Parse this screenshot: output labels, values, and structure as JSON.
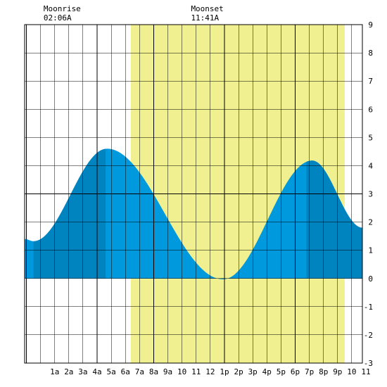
{
  "chart_data": {
    "type": "area",
    "x_unit": "hour of day",
    "xlim": [
      -1.125,
      22.75
    ],
    "ylim": [
      -3,
      9
    ],
    "x_tick_labels": [
      {
        "hour": 1,
        "label": "1a"
      },
      {
        "hour": 2,
        "label": "2a"
      },
      {
        "hour": 3,
        "label": "3a"
      },
      {
        "hour": 4,
        "label": "4a"
      },
      {
        "hour": 5,
        "label": "5a"
      },
      {
        "hour": 6,
        "label": "6a"
      },
      {
        "hour": 7,
        "label": "7a"
      },
      {
        "hour": 8,
        "label": "8a"
      },
      {
        "hour": 9,
        "label": "9a"
      },
      {
        "hour": 10,
        "label": "10"
      },
      {
        "hour": 11,
        "label": "11"
      },
      {
        "hour": 12,
        "label": "12"
      },
      {
        "hour": 13,
        "label": "1p"
      },
      {
        "hour": 14,
        "label": "2p"
      },
      {
        "hour": 15,
        "label": "3p"
      },
      {
        "hour": 16,
        "label": "4p"
      },
      {
        "hour": 17,
        "label": "5p"
      },
      {
        "hour": 18,
        "label": "6p"
      },
      {
        "hour": 19,
        "label": "7p"
      },
      {
        "hour": 20,
        "label": "8p"
      },
      {
        "hour": 21,
        "label": "9p"
      },
      {
        "hour": 22,
        "label": "10"
      },
      {
        "hour": 23,
        "label": "11"
      }
    ],
    "y_ticks": [
      -3,
      -2,
      -1,
      0,
      1,
      2,
      3,
      4,
      5,
      6,
      7,
      8,
      9
    ],
    "grid": true,
    "daylight": {
      "start": 6.38,
      "end": 21.5
    },
    "moon_windows": [
      {
        "start": -0.5,
        "end": 4.6
      },
      {
        "start": 18.8,
        "end": 22.75
      }
    ],
    "tide_points": [
      {
        "x": -1.125,
        "y": 1.4
      },
      {
        "x": -0.5,
        "y": 1.32
      },
      {
        "x": 4.7,
        "y": 4.6
      },
      {
        "x": 12.9,
        "y": -0.03
      },
      {
        "x": 19.2,
        "y": 4.18
      },
      {
        "x": 22.75,
        "y": 1.8
      }
    ],
    "annotations": [
      {
        "label": "Moonrise",
        "time": "02:06A",
        "hour": 2.1
      },
      {
        "label": "Moonset",
        "time": "11:41A",
        "hour": 11.68
      }
    ],
    "colors": {
      "daylight": "#f0f090",
      "tide": "#0099dd",
      "tide_moon": "#0084c0",
      "grid": "#000000",
      "background": "#ffffff"
    }
  }
}
